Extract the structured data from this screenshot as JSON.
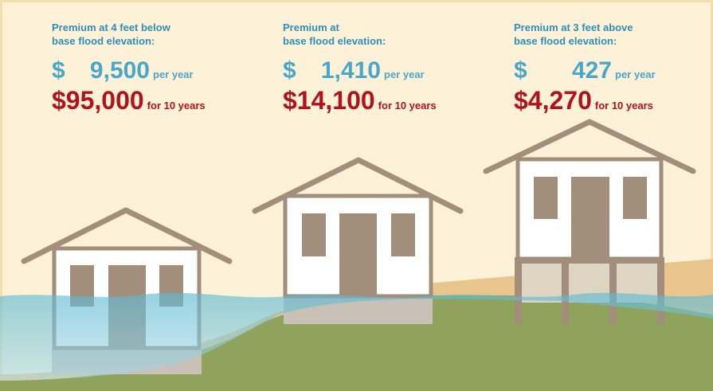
{
  "panels": [
    {
      "heading": [
        "Premium at 4 feet below",
        "base flood elevation:"
      ],
      "currency": "$",
      "annual": "9,500",
      "annual_unit": "per year",
      "total": "$95,000",
      "total_unit": "for 10 years"
    },
    {
      "heading": [
        "Premium at",
        "base flood elevation:"
      ],
      "currency": "$",
      "annual": "1,410",
      "annual_unit": "per year",
      "total": "$14,100",
      "total_unit": "for 10 years"
    },
    {
      "heading": [
        "Premium at 3 feet above",
        "base flood elevation:"
      ],
      "currency": "$",
      "annual": "427",
      "annual_unit": "per year",
      "total": "$4,270",
      "total_unit": "for 10 years"
    }
  ]
}
